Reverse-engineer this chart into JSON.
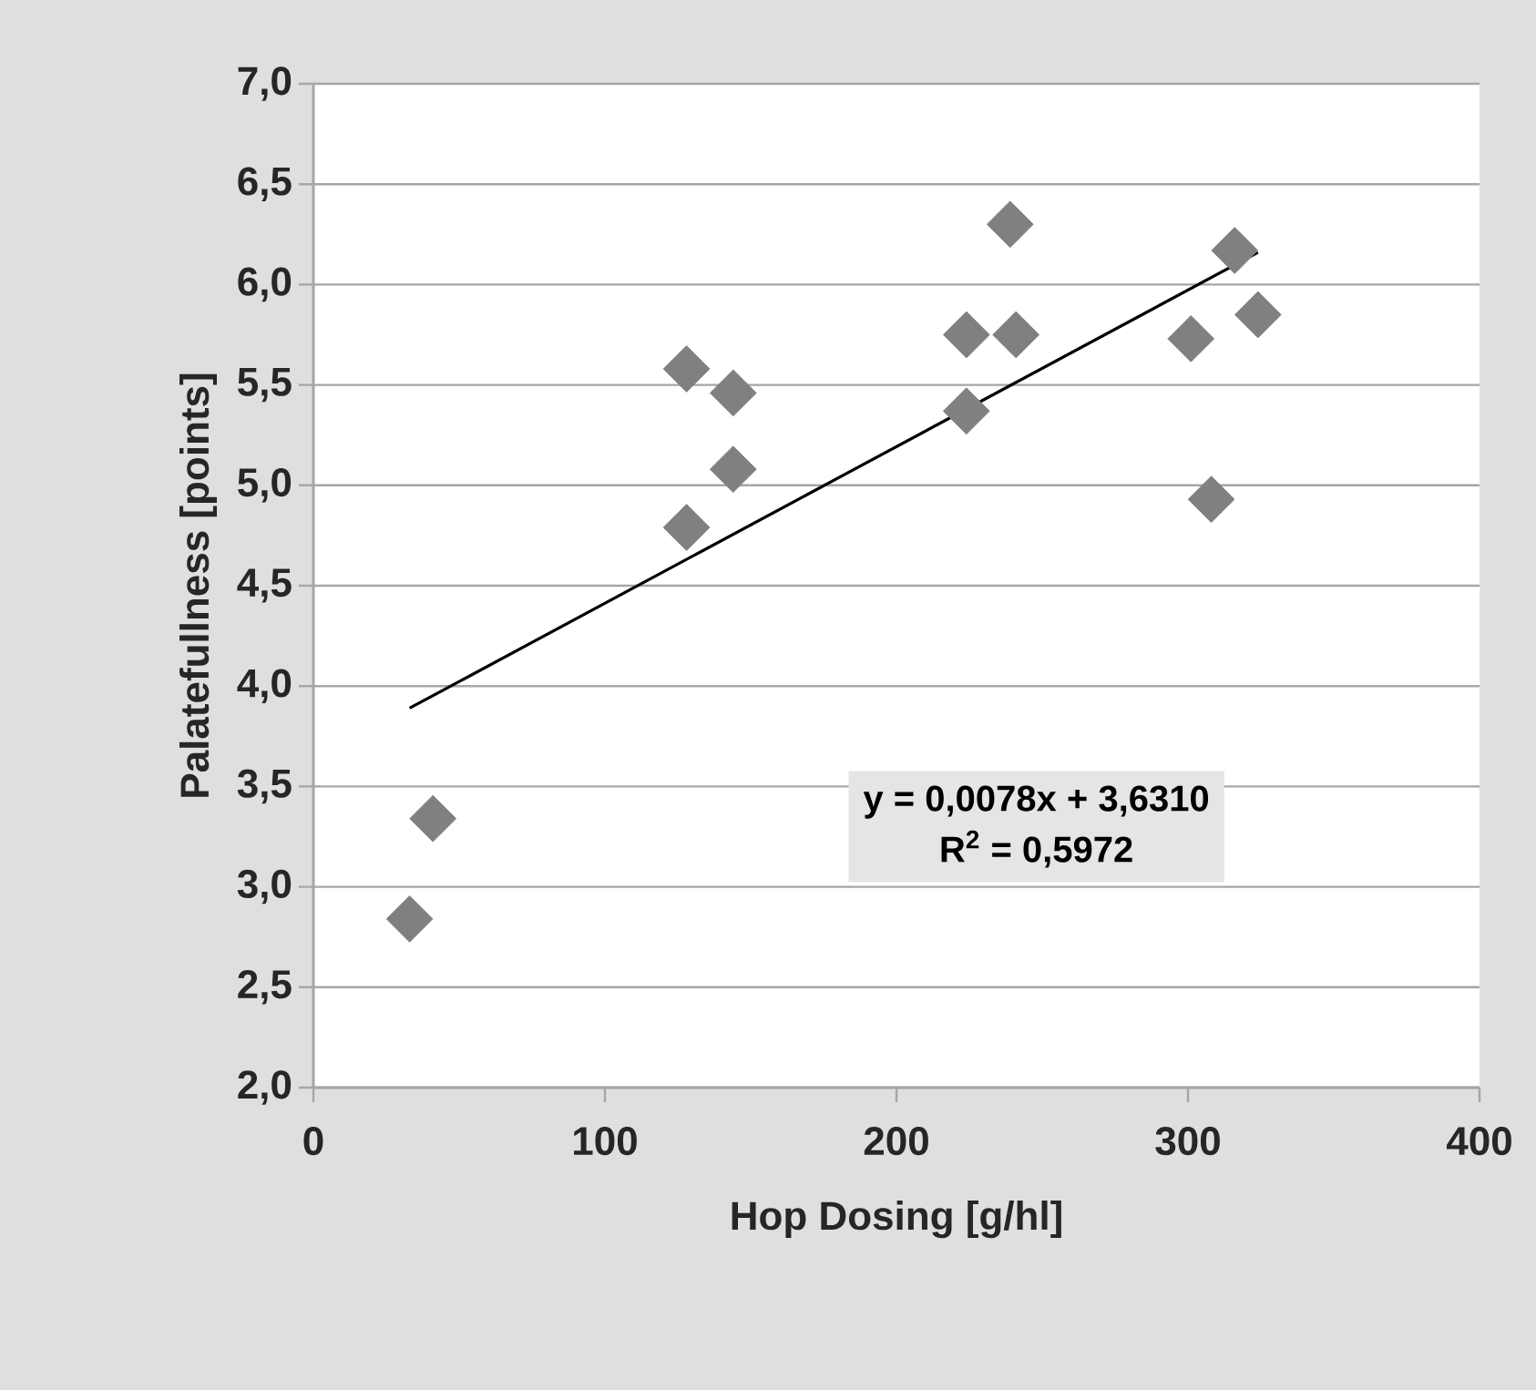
{
  "chart_data": {
    "type": "scatter",
    "xlabel": "Hop Dosing [g/hl]",
    "ylabel": "Palatefullness [points]",
    "xlim": [
      0,
      400
    ],
    "xticks": [
      0,
      100,
      200,
      300,
      400
    ],
    "ylim": [
      2,
      7
    ],
    "yticks": [
      {
        "value": 2,
        "label": "2,0"
      },
      {
        "value": 2.5,
        "label": "2,5"
      },
      {
        "value": 3,
        "label": "3,0"
      },
      {
        "value": 3.5,
        "label": "3,5"
      },
      {
        "value": 4,
        "label": "4,0"
      },
      {
        "value": 4.5,
        "label": "4,5"
      },
      {
        "value": 5,
        "label": "5,0"
      },
      {
        "value": 5.5,
        "label": "5,5"
      },
      {
        "value": 6,
        "label": "6,0"
      },
      {
        "value": 6.5,
        "label": "6,5"
      },
      {
        "value": 7,
        "label": "7,0"
      }
    ],
    "grid": "y",
    "series": [
      {
        "color": "#808080",
        "marker": "diamond",
        "x": [
          33,
          41,
          128,
          144,
          144,
          128,
          224,
          241,
          224,
          239,
          301,
          316,
          324,
          308
        ],
        "values": [
          2.84,
          3.34,
          5.58,
          5.46,
          5.08,
          4.79,
          5.75,
          5.75,
          5.37,
          6.3,
          5.73,
          6.17,
          5.85,
          4.93
        ]
      },
      {
        "type": "line",
        "color": "#000000",
        "marker": "none",
        "line_style": "solid",
        "x": [
          33,
          324
        ],
        "values": [
          3.89,
          6.16
        ]
      }
    ],
    "annotations": [
      "y = 0,0078x + 3,6310",
      "R$^{2}$ = 0,5972"
    ]
  }
}
